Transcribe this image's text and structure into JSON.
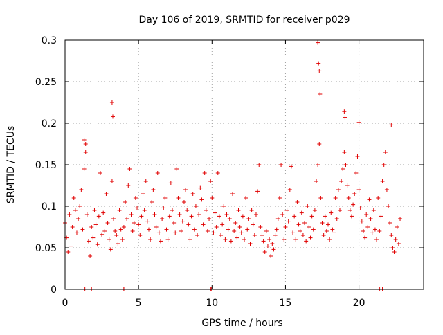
{
  "chart_data": {
    "type": "scatter",
    "title": "Day 106 of 2019, SRMTID for receiver p029",
    "xlabel": "GPS time / hours",
    "ylabel": "SRMTID / TECUs",
    "xlim": [
      0,
      24.4
    ],
    "ylim": [
      0,
      0.3
    ],
    "x_ticks": [
      "0",
      "5",
      "10",
      "15",
      "20"
    ],
    "y_ticks": [
      "0",
      "0.05",
      "0.1",
      "0.15",
      "0.2",
      "0.25",
      "0.3"
    ],
    "x_tick_values": [
      0,
      5,
      10,
      15,
      20
    ],
    "y_tick_values": [
      0,
      0.05,
      0.1,
      0.15,
      0.2,
      0.25,
      0.3
    ],
    "grid": true,
    "marker": "+",
    "series": [
      {
        "name": "p029",
        "color": "#e00000",
        "marker": "+",
        "x": [
          0.0,
          0.1,
          0.2,
          0.3,
          0.4,
          0.5,
          0.6,
          0.7,
          0.8,
          0.9,
          1.0,
          1.1,
          1.2,
          1.3,
          1.4,
          1.5,
          1.6,
          1.7,
          1.8,
          1.9,
          2.0,
          2.1,
          2.2,
          2.3,
          2.4,
          2.5,
          2.6,
          2.7,
          2.8,
          2.9,
          3.0,
          3.1,
          3.2,
          3.3,
          3.4,
          3.5,
          3.6,
          3.7,
          3.8,
          3.9,
          4.0,
          4.1,
          4.2,
          4.3,
          4.4,
          4.5,
          4.6,
          4.7,
          4.8,
          4.9,
          5.0,
          5.1,
          5.2,
          5.3,
          5.4,
          5.5,
          5.6,
          5.7,
          5.8,
          5.9,
          6.0,
          6.1,
          6.2,
          6.3,
          6.4,
          6.5,
          6.6,
          6.7,
          6.8,
          6.9,
          7.0,
          7.1,
          7.2,
          7.3,
          7.4,
          7.5,
          7.6,
          7.7,
          7.8,
          7.9,
          8.0,
          8.1,
          8.2,
          8.3,
          8.4,
          8.5,
          8.6,
          8.7,
          8.8,
          8.9,
          9.0,
          9.1,
          9.2,
          9.3,
          9.4,
          9.5,
          9.6,
          9.7,
          9.8,
          9.9,
          10.0,
          10.1,
          10.2,
          10.3,
          10.4,
          10.5,
          10.6,
          10.7,
          10.8,
          10.9,
          11.0,
          11.1,
          11.2,
          11.3,
          11.4,
          11.5,
          11.6,
          11.7,
          11.8,
          11.9,
          12.0,
          12.1,
          12.2,
          12.3,
          12.4,
          12.5,
          12.6,
          12.7,
          12.8,
          12.9,
          13.0,
          13.1,
          13.2,
          13.3,
          13.4,
          13.5,
          13.6,
          13.7,
          13.8,
          13.9,
          14.0,
          14.1,
          14.2,
          14.3,
          14.4,
          14.5,
          14.6,
          14.7,
          14.8,
          14.9,
          15.0,
          15.1,
          15.2,
          15.3,
          15.4,
          15.5,
          15.6,
          15.7,
          15.8,
          15.9,
          16.0,
          16.1,
          16.2,
          16.3,
          16.4,
          16.5,
          16.6,
          16.7,
          16.8,
          16.9,
          17.0,
          17.1,
          17.2,
          17.3,
          17.4,
          17.5,
          17.6,
          17.7,
          17.8,
          17.9,
          18.0,
          18.1,
          18.2,
          18.3,
          18.4,
          18.5,
          18.6,
          18.7,
          18.8,
          18.9,
          19.0,
          19.1,
          19.2,
          19.3,
          19.4,
          19.5,
          19.6,
          19.7,
          19.8,
          19.9,
          20.0,
          20.1,
          20.2,
          20.3,
          20.4,
          20.5,
          20.6,
          20.7,
          20.8,
          20.9,
          21.0,
          21.1,
          21.2,
          21.3,
          21.4,
          21.5,
          21.6,
          21.7,
          21.8,
          21.9,
          22.0,
          22.1,
          22.2,
          22.3,
          22.4,
          22.5,
          22.6,
          22.7,
          22.8,
          1.35,
          1.8,
          3.2,
          3.25,
          4.0,
          9.9,
          17.2,
          17.25,
          17.3,
          17.35,
          19.0,
          19.05,
          20.0,
          21.5,
          21.6,
          22.2,
          1.3,
          1.4,
          4.0,
          9.95,
          21.4
        ],
        "y": [
          0.08,
          0.062,
          0.045,
          0.09,
          0.052,
          0.075,
          0.11,
          0.095,
          0.068,
          0.085,
          0.1,
          0.12,
          0.072,
          0.145,
          0.165,
          0.09,
          0.058,
          0.04,
          0.075,
          0.062,
          0.095,
          0.078,
          0.054,
          0.088,
          0.14,
          0.066,
          0.092,
          0.07,
          0.115,
          0.08,
          0.06,
          0.048,
          0.13,
          0.085,
          0.07,
          0.065,
          0.055,
          0.095,
          0.072,
          0.06,
          0.075,
          0.105,
          0.085,
          0.125,
          0.145,
          0.09,
          0.07,
          0.08,
          0.11,
          0.098,
          0.078,
          0.065,
          0.088,
          0.115,
          0.095,
          0.13,
          0.082,
          0.072,
          0.06,
          0.105,
          0.12,
          0.09,
          0.075,
          0.14,
          0.068,
          0.058,
          0.085,
          0.098,
          0.11,
          0.072,
          0.06,
          0.088,
          0.128,
          0.095,
          0.08,
          0.068,
          0.145,
          0.11,
          0.09,
          0.07,
          0.082,
          0.105,
          0.12,
          0.095,
          0.078,
          0.06,
          0.088,
          0.115,
          0.072,
          0.1,
          0.065,
          0.09,
          0.122,
          0.108,
          0.078,
          0.14,
          0.095,
          0.07,
          0.085,
          0.13,
          0.11,
          0.068,
          0.092,
          0.075,
          0.14,
          0.088,
          0.065,
          0.078,
          0.1,
          0.06,
          0.09,
          0.072,
          0.085,
          0.058,
          0.115,
          0.07,
          0.08,
          0.062,
          0.095,
          0.075,
          0.068,
          0.088,
          0.06,
          0.11,
          0.072,
          0.085,
          0.055,
          0.095,
          0.078,
          0.065,
          0.09,
          0.118,
          0.15,
          0.075,
          0.065,
          0.058,
          0.045,
          0.07,
          0.052,
          0.06,
          0.04,
          0.055,
          0.048,
          0.065,
          0.072,
          0.085,
          0.11,
          0.15,
          0.09,
          0.06,
          0.075,
          0.095,
          0.082,
          0.12,
          0.148,
          0.068,
          0.088,
          0.06,
          0.105,
          0.078,
          0.07,
          0.092,
          0.065,
          0.08,
          0.058,
          0.1,
          0.075,
          0.062,
          0.088,
          0.072,
          0.095,
          0.13,
          0.15,
          0.175,
          0.11,
          0.08,
          0.065,
          0.088,
          0.07,
          0.078,
          0.06,
          0.092,
          0.072,
          0.068,
          0.11,
          0.085,
          0.12,
          0.095,
          0.13,
          0.145,
          0.165,
          0.15,
          0.125,
          0.11,
          0.095,
          0.088,
          0.102,
          0.115,
          0.14,
          0.16,
          0.12,
          0.098,
          0.082,
          0.07,
          0.062,
          0.09,
          0.075,
          0.108,
          0.085,
          0.068,
          0.095,
          0.072,
          0.06,
          0.11,
          0.07,
          0.088,
          0.13,
          0.15,
          0.165,
          0.12,
          0.1,
          0.08,
          0.065,
          0.05,
          0.045,
          0.06,
          0.075,
          0.055,
          0.085,
          0.0,
          0.0,
          0.225,
          0.208,
          0.0,
          0.0,
          0.297,
          0.272,
          0.263,
          0.235,
          0.214,
          0.207,
          0.201,
          0.0,
          0.0,
          0.198,
          0.18,
          0.175,
          0.0,
          0.0,
          0.0
        ]
      }
    ]
  }
}
